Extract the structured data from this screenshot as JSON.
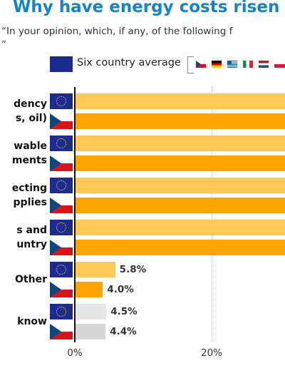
{
  "header": {
    "title": "Why have energy costs risen",
    "subtitle": "“In your opinion, which, if any, of the following f",
    "subtitle_line2": "”"
  },
  "legend": {
    "average_label": "Six country average",
    "country_flags": [
      "czech-flag-icon",
      "german-flag-icon",
      "greek-flag-icon",
      "italian-flag-icon",
      "dutch-flag-icon",
      "polish-flag-icon"
    ]
  },
  "colors": {
    "title": "#1583c7",
    "average_flag": "#1b2b8f",
    "average_bar": "#ffc857",
    "czech_bar": "#ffa500",
    "dont_know_average_bar": "#e6e6e6",
    "dont_know_czech_bar": "#d6d6d6"
  },
  "chart_data": {
    "type": "bar",
    "orientation": "horizontal",
    "categories": [
      [
        "dency",
        "s, oil)"
      ],
      [
        "wable",
        "ments"
      ],
      [
        "ecting",
        "pplies"
      ],
      [
        "s and",
        "untry"
      ],
      [
        "Other"
      ],
      [
        "know"
      ]
    ],
    "series": [
      {
        "name": "Six country average",
        "values": [
          null,
          null,
          null,
          null,
          5.8,
          4.5
        ],
        "value_labels": [
          "",
          "",
          "",
          "",
          "5.8%",
          "4.5%"
        ]
      },
      {
        "values": [
          null,
          null,
          null,
          null,
          4.0,
          4.4
        ],
        "value_labels": [
          "",
          "",
          "",
          "",
          "4.0%",
          "4.4%"
        ]
      }
    ],
    "note": "values of the first four categories are cut off at the right edge",
    "x_ticks": [
      "0%",
      "20%"
    ],
    "xlim": [
      0,
      30
    ],
    "grid": true,
    "legend_position": "top"
  }
}
